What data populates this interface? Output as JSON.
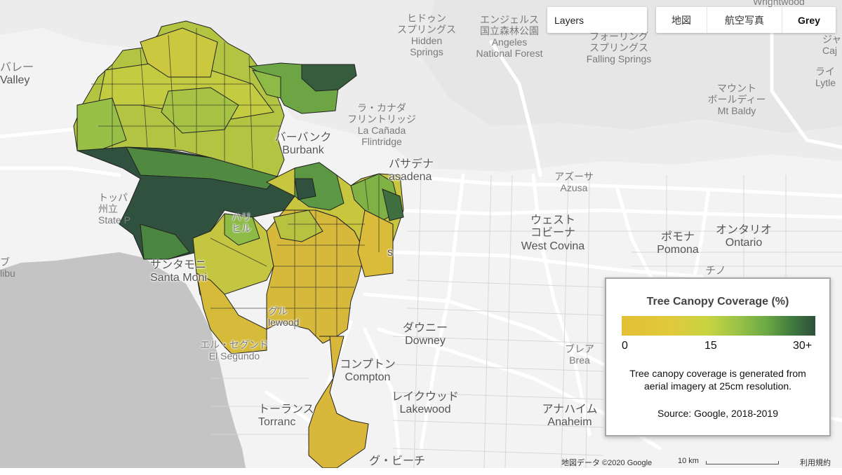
{
  "layers_label": "Layers",
  "map_types": [
    {
      "label": "地図",
      "active": false
    },
    {
      "label": "航空写真",
      "active": false
    },
    {
      "label": "Grey",
      "active": true
    }
  ],
  "legend": {
    "title": "Tree Canopy Coverage (%)",
    "ticks": [
      "0",
      "15",
      "30+"
    ],
    "description_line1": "Tree canopy coverage is generated from",
    "description_line2": "aerial imagery at 25cm resolution.",
    "source": "Source: Google, 2018-2019",
    "gradient_colors": [
      "#e3bf36",
      "#e1ca3c",
      "#c6d442",
      "#9bc248",
      "#6ba844",
      "#3f7a3f",
      "#2f4f3b"
    ]
  },
  "places": {
    "hidden_springs": {
      "jp": "ヒドゥン\nスプリングス",
      "en": "Hidden\nSprings"
    },
    "angeles_forest": {
      "jp": "エンジェルス\n国立森林公園",
      "en": "Angeles\nNational Forest"
    },
    "falling_springs": {
      "jp": "フォーリング\nスプリングス",
      "en": "Falling Springs"
    },
    "mt_baldy": {
      "jp": "マウント\nボールディー",
      "en": "Mt Baldy"
    },
    "la_canada": {
      "jp": "ラ・カナダ\nフリントリッジ",
      "en": "La Cañada\nFlintridge"
    },
    "burbank": {
      "jp": "バーバンク",
      "en": "Burbank"
    },
    "pasadena": {
      "jp": "パサデナ",
      "en": "asadena"
    },
    "azusa": {
      "jp": "アズーサ",
      "en": "Azusa"
    },
    "west_covina": {
      "jp": "ウェスト\nコビーナ",
      "en": "West Covina"
    },
    "pomona": {
      "jp": "ポモナ",
      "en": "Pomona"
    },
    "ontario": {
      "jp": "オンタリオ",
      "en": "Ontario"
    },
    "chino": {
      "jp": "チノ",
      "en": ""
    },
    "downey": {
      "jp": "ダウニー",
      "en": "Downey"
    },
    "brea": {
      "jp": "ブレア",
      "en": "Brea"
    },
    "compton": {
      "jp": "コンプトン",
      "en": "Compton"
    },
    "lakewood": {
      "jp": "レイクウッド",
      "en": "Lakewood"
    },
    "anaheim": {
      "jp": "アナハイム",
      "en": "Anaheim"
    },
    "torrance": {
      "jp": "トーランス",
      "en": "Torranc"
    },
    "el_segundo": {
      "jp": "エル・セグンド",
      "en": "El Segundo"
    },
    "santa_monica": {
      "jp": "サンタモニ",
      "en": "Santa Moni"
    },
    "topanga": {
      "jp": "トッパ\n州立",
      "en": "State P"
    },
    "valley": {
      "jp": "バレー",
      "en": "Valley"
    },
    "malibu": {
      "jp": "ブ",
      "en": "libu"
    },
    "wrightwood": {
      "jp": "Wrightwood",
      "en": ""
    },
    "right_top": {
      "jp": "ジャ",
      "en": "Caj"
    },
    "lytle": {
      "jp": "ライ",
      "en": "Lytle"
    },
    "long_beach": {
      "jp": "グ・ビーチ",
      "en": ""
    },
    "hills": {
      "jp": "ヒル",
      "en": ""
    },
    "inglewood": {
      "jp": "グル",
      "en": "lewood"
    },
    "east_la": {
      "jp": "",
      "en": "s"
    },
    "hollywood_frag": {
      "jp": "ハリ",
      "en": ""
    }
  },
  "footer": {
    "attribution": "地図データ ©2020 Google",
    "scale": "10 km",
    "terms": "利用規約"
  }
}
